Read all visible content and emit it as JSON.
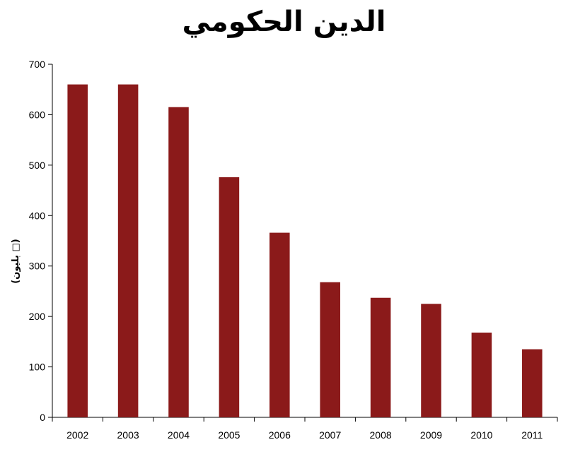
{
  "chart_data": {
    "type": "bar",
    "title": "الدين الحكومي",
    "xlabel": "",
    "ylabel": "(بليون □)",
    "categories": [
      "2002",
      "2003",
      "2004",
      "2005",
      "2006",
      "2007",
      "2008",
      "2009",
      "2010",
      "2011"
    ],
    "values": [
      660,
      660,
      615,
      476,
      366,
      268,
      237,
      225,
      168,
      135
    ],
    "ylim": [
      0,
      700
    ],
    "yticks": [
      0,
      100,
      200,
      300,
      400,
      500,
      600,
      700
    ],
    "grid": false,
    "bar_color": "#8b1a1a"
  }
}
